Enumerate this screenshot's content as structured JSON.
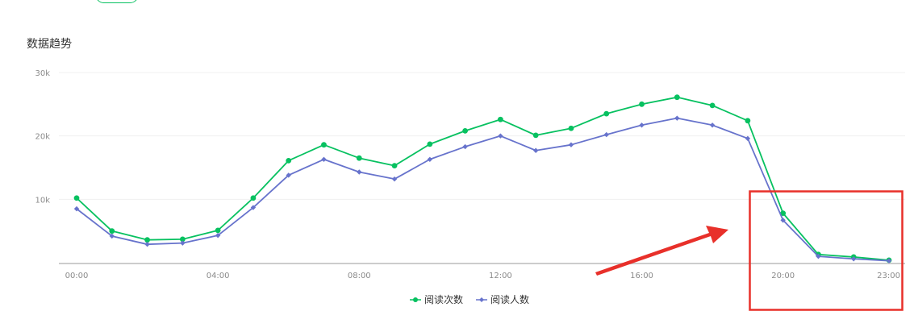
{
  "section": {
    "title": "数据趋势"
  },
  "chart_data": {
    "type": "line",
    "x": [
      "00:00",
      "01:00",
      "02:00",
      "03:00",
      "04:00",
      "05:00",
      "06:00",
      "07:00",
      "08:00",
      "09:00",
      "10:00",
      "11:00",
      "12:00",
      "13:00",
      "14:00",
      "15:00",
      "16:00",
      "17:00",
      "18:00",
      "19:00",
      "20:00",
      "21:00",
      "22:00",
      "23:00"
    ],
    "x_tick_labels": [
      "00:00",
      "04:00",
      "08:00",
      "12:00",
      "16:00",
      "20:00",
      "23:00"
    ],
    "y_ticks": [
      10000,
      20000,
      30000
    ],
    "y_tick_labels": [
      "10k",
      "20k",
      "30k"
    ],
    "ylim": [
      0,
      30000
    ],
    "grid": true,
    "legend_position": "bottom-center",
    "series": [
      {
        "name": "阅读次数",
        "color": "#07c160",
        "marker": "circle",
        "values": [
          10200,
          5000,
          3600,
          3700,
          5100,
          10200,
          16100,
          18600,
          16500,
          15300,
          18700,
          20800,
          22600,
          20100,
          21200,
          23500,
          25000,
          26100,
          24800,
          22400,
          7800,
          1300,
          900,
          400
        ]
      },
      {
        "name": "阅读人数",
        "color": "#6773cc",
        "marker": "diamond",
        "values": [
          8500,
          4200,
          2900,
          3100,
          4300,
          8700,
          13800,
          16300,
          14300,
          13200,
          16300,
          18300,
          20000,
          17700,
          18600,
          20200,
          21700,
          22800,
          21700,
          19600,
          6700,
          1000,
          600,
          300
        ]
      }
    ]
  },
  "annotation": {
    "arrow_color": "#e8302a",
    "box_color": "#e8302a"
  }
}
